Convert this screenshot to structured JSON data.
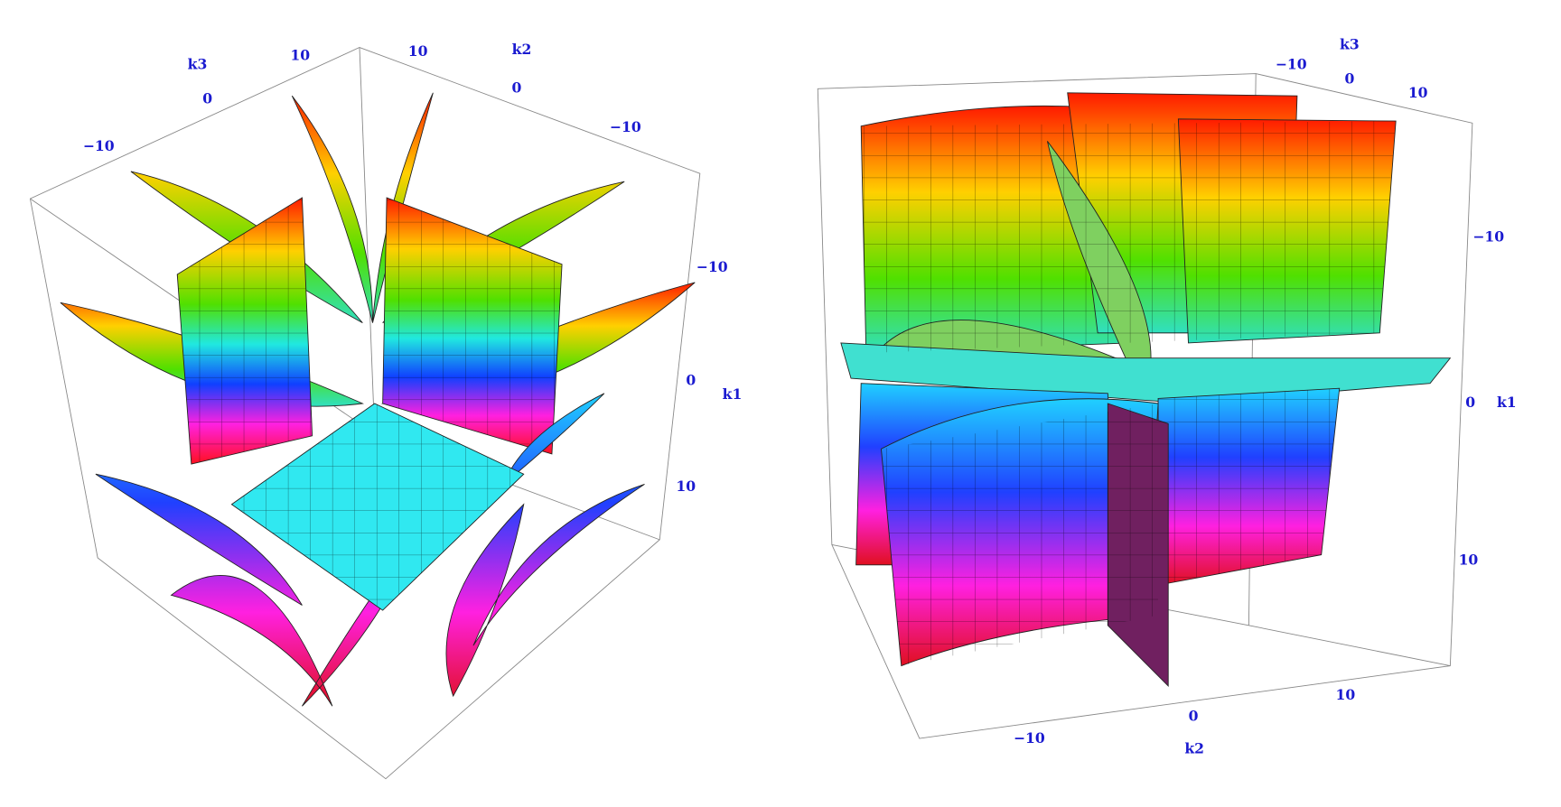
{
  "plots": [
    {
      "axes": [
        {
          "label": "k3",
          "ticks": [
            "−10",
            "0",
            "10"
          ]
        },
        {
          "label": "k2",
          "ticks": [
            "10",
            "0",
            "−10"
          ]
        },
        {
          "label": "k1",
          "ticks": [
            "−10",
            "0",
            "10"
          ]
        }
      ]
    },
    {
      "axes": [
        {
          "label": "k3",
          "ticks": [
            "−10",
            "0",
            "10"
          ]
        },
        {
          "label": "k1",
          "ticks": [
            "−10",
            "0",
            "10"
          ]
        },
        {
          "label": "k2",
          "ticks": [
            "−10",
            "0",
            "10"
          ]
        }
      ]
    }
  ]
}
